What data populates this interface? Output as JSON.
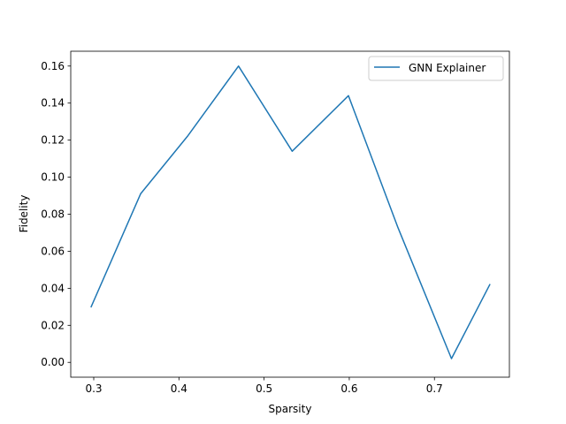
{
  "chart_data": {
    "type": "line",
    "title": "",
    "xlabel": "Sparsity",
    "ylabel": "Fidelity",
    "xlim": [
      0.273,
      0.788
    ],
    "ylim": [
      -0.008,
      0.168
    ],
    "x_ticks": [
      0.3,
      0.4,
      0.5,
      0.6,
      0.7
    ],
    "x_tick_labels": [
      "0.3",
      "0.4",
      "0.5",
      "0.6",
      "0.7"
    ],
    "y_ticks": [
      0.0,
      0.02,
      0.04,
      0.06,
      0.08,
      0.1,
      0.12,
      0.14,
      0.16
    ],
    "y_tick_labels": [
      "0.00",
      "0.02",
      "0.04",
      "0.06",
      "0.08",
      "0.10",
      "0.12",
      "0.14",
      "0.16"
    ],
    "grid": false,
    "legend_position": "top-right",
    "series": [
      {
        "name": "GNN Explainer",
        "color": "#1f77b4",
        "x": [
          0.297,
          0.355,
          0.41,
          0.47,
          0.533,
          0.599,
          0.657,
          0.72,
          0.765
        ],
        "y": [
          0.03,
          0.091,
          0.122,
          0.16,
          0.114,
          0.144,
          0.073,
          0.002,
          0.042
        ]
      }
    ]
  }
}
